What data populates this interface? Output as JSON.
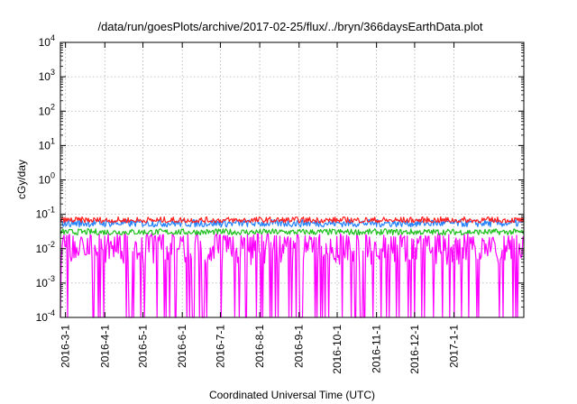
{
  "chart_data": {
    "type": "line",
    "title": "/data/run/goesPlots/archive/2017-02-25/flux/../bryn/366daysEarthData.plot",
    "xlabel": "Coordinated Universal Time (UTC)",
    "ylabel": "cGy/day",
    "yscale": "log",
    "ylim": [
      0.0001,
      10000
    ],
    "yticks": [
      {
        "value": 0.0001,
        "base": "10",
        "exp": "-4"
      },
      {
        "value": 0.001,
        "base": "10",
        "exp": "-3"
      },
      {
        "value": 0.01,
        "base": "10",
        "exp": "-2"
      },
      {
        "value": 0.1,
        "base": "10",
        "exp": "-1"
      },
      {
        "value": 1,
        "base": "10",
        "exp": "0"
      },
      {
        "value": 10,
        "base": "10",
        "exp": "1"
      },
      {
        "value": 100,
        "base": "10",
        "exp": "2"
      },
      {
        "value": 1000,
        "base": "10",
        "exp": "3"
      },
      {
        "value": 10000,
        "base": "10",
        "exp": "4"
      }
    ],
    "xlim": [
      "2016-02-26",
      "2017-02-25"
    ],
    "xticks": [
      "2016-3-1",
      "2016-4-1",
      "2016-5-1",
      "2016-6-1",
      "2016-7-1",
      "2016-8-1",
      "2016-9-1",
      "2016-10-1",
      "2016-11-1",
      "2016-12-1",
      "2017-1-1"
    ],
    "grid": true,
    "legend": "none",
    "series": [
      {
        "color": "#ff2020",
        "typical": 0.065,
        "min": 0.055,
        "max": 0.09
      },
      {
        "color": "#2080ff",
        "typical": 0.055,
        "min": 0.04,
        "max": 0.075
      },
      {
        "color": "#20c020",
        "typical": 0.03,
        "min": 0.024,
        "max": 0.04
      },
      {
        "color": "#ff00ff",
        "typical": 0.02,
        "min": 0.0033,
        "max": 0.03,
        "dropouts_to": 0.0001
      }
    ]
  }
}
